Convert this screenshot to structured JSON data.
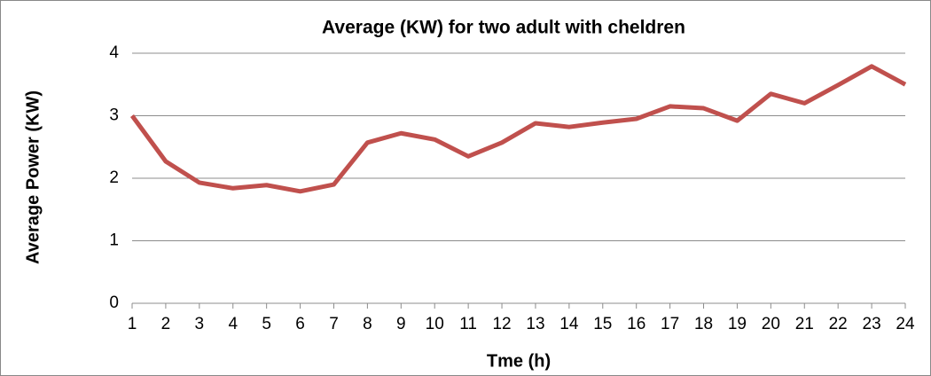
{
  "chart_data": {
    "type": "line",
    "title": "Average (KW) for two adult with cheldren",
    "x_label": "Tme (h)",
    "y_label": "Average Power (KW)",
    "x": [
      1,
      2,
      3,
      4,
      5,
      6,
      7,
      8,
      9,
      10,
      11,
      12,
      13,
      14,
      15,
      16,
      17,
      18,
      19,
      20,
      21,
      22,
      23,
      24
    ],
    "xlim": [
      1,
      24
    ],
    "xticks": [
      1,
      2,
      3,
      4,
      5,
      6,
      7,
      8,
      9,
      10,
      11,
      12,
      13,
      14,
      15,
      16,
      17,
      18,
      19,
      20,
      21,
      22,
      23,
      24
    ],
    "ylim": [
      0,
      4
    ],
    "yticks": [
      0,
      1,
      2,
      3,
      4
    ],
    "grid": true,
    "series": [
      {
        "color": "#c0504d",
        "values": [
          3.0,
          2.27,
          1.93,
          1.84,
          1.89,
          1.79,
          1.9,
          2.57,
          2.72,
          2.62,
          2.35,
          2.57,
          2.88,
          2.82,
          2.89,
          2.95,
          3.15,
          3.12,
          2.92,
          3.35,
          3.2,
          3.49,
          3.79,
          3.5
        ]
      }
    ]
  }
}
